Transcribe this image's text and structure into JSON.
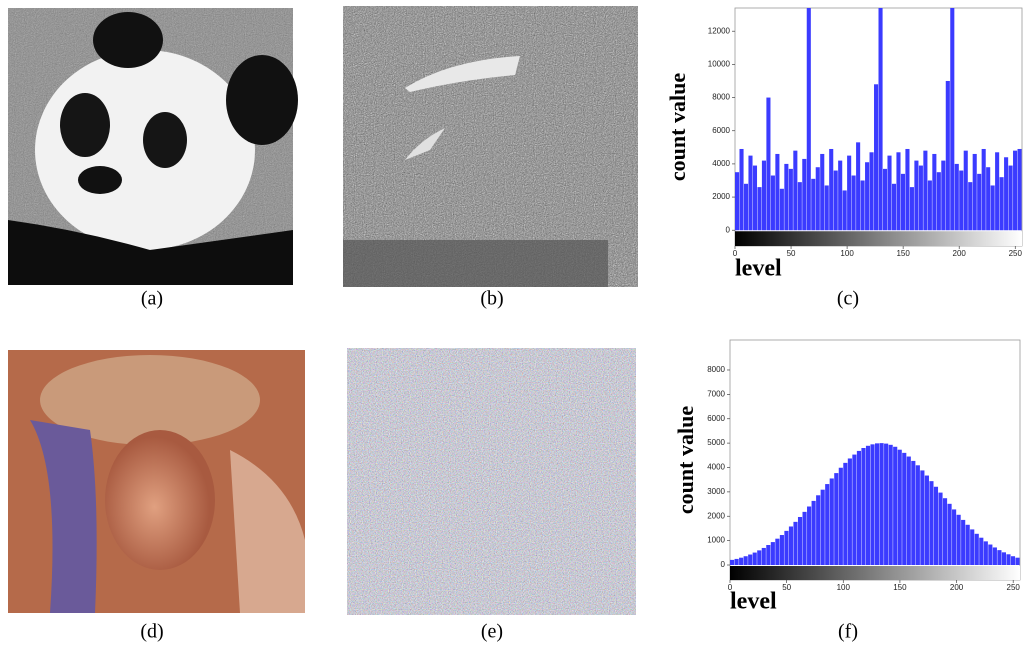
{
  "captions": [
    "(a)",
    "(b)",
    "(c)",
    "(d)",
    "(e)",
    "(f)"
  ],
  "chart_data": [
    {
      "type": "histogram",
      "ylabel": "count value",
      "xlabel": "level",
      "color": "#3b3bff",
      "xlim": [
        0,
        256
      ],
      "xticks": [
        0,
        50,
        100,
        150,
        200,
        250
      ],
      "ylim": [
        -950,
        13400
      ],
      "yticks": [
        0,
        2000,
        4000,
        6000,
        8000,
        10000,
        12000
      ],
      "bins": [
        0,
        4,
        8,
        12,
        16,
        20,
        24,
        28,
        32,
        36,
        40,
        44,
        48,
        52,
        56,
        60,
        64,
        68,
        72,
        76,
        80,
        84,
        88,
        92,
        96,
        100,
        104,
        108,
        112,
        116,
        120,
        124,
        128,
        132,
        136,
        140,
        144,
        148,
        152,
        156,
        160,
        164,
        168,
        172,
        176,
        180,
        184,
        188,
        192,
        196,
        200,
        204,
        208,
        212,
        216,
        220,
        224,
        228,
        232,
        236,
        240,
        244,
        248,
        252,
        256
      ],
      "values": [
        3500,
        4900,
        2800,
        4500,
        3900,
        2600,
        4200,
        8000,
        3300,
        4600,
        2500,
        4000,
        3700,
        4800,
        2900,
        4300,
        13400,
        3100,
        3800,
        4600,
        2700,
        4900,
        3600,
        4200,
        2400,
        4500,
        3300,
        5300,
        3000,
        4100,
        4700,
        8800,
        13400,
        3700,
        4500,
        2800,
        4700,
        3400,
        4900,
        2600,
        4200,
        3900,
        4800,
        3000,
        4600,
        3500,
        4200,
        9000,
        13400,
        4000,
        3600,
        4800,
        2900,
        4600,
        3400,
        4900,
        3800,
        2700,
        4700,
        3200,
        4400,
        3900,
        4800,
        4900
      ]
    },
    {
      "type": "histogram",
      "ylabel": "count value",
      "xlabel": "level",
      "color": "#3b3bff",
      "xlim": [
        0,
        256
      ],
      "xticks": [
        0,
        50,
        100,
        150,
        200,
        250
      ],
      "ylim": [
        -615,
        9230
      ],
      "yticks": [
        0,
        1000,
        2000,
        3000,
        4000,
        5000,
        6000,
        7000,
        8000
      ],
      "bins": [
        0,
        4,
        8,
        12,
        16,
        20,
        24,
        28,
        32,
        36,
        40,
        44,
        48,
        52,
        56,
        60,
        64,
        68,
        72,
        76,
        80,
        84,
        88,
        92,
        96,
        100,
        104,
        108,
        112,
        116,
        120,
        124,
        128,
        132,
        136,
        140,
        144,
        148,
        152,
        156,
        160,
        164,
        168,
        172,
        176,
        180,
        184,
        188,
        192,
        196,
        200,
        204,
        208,
        212,
        216,
        220,
        224,
        228,
        232,
        236,
        240,
        244,
        248,
        252,
        256
      ],
      "values": [
        210,
        250,
        300,
        360,
        430,
        510,
        600,
        700,
        820,
        940,
        1080,
        1230,
        1400,
        1580,
        1770,
        1970,
        2180,
        2400,
        2630,
        2860,
        3090,
        3320,
        3550,
        3770,
        3990,
        4190,
        4370,
        4530,
        4680,
        4800,
        4890,
        4950,
        4990,
        5000,
        4980,
        4930,
        4850,
        4730,
        4600,
        4450,
        4270,
        4090,
        3880,
        3670,
        3440,
        3210,
        2970,
        2740,
        2510,
        2280,
        2060,
        1850,
        1650,
        1460,
        1280,
        1120,
        970,
        840,
        720,
        610,
        520,
        440,
        360,
        300
      ]
    }
  ]
}
